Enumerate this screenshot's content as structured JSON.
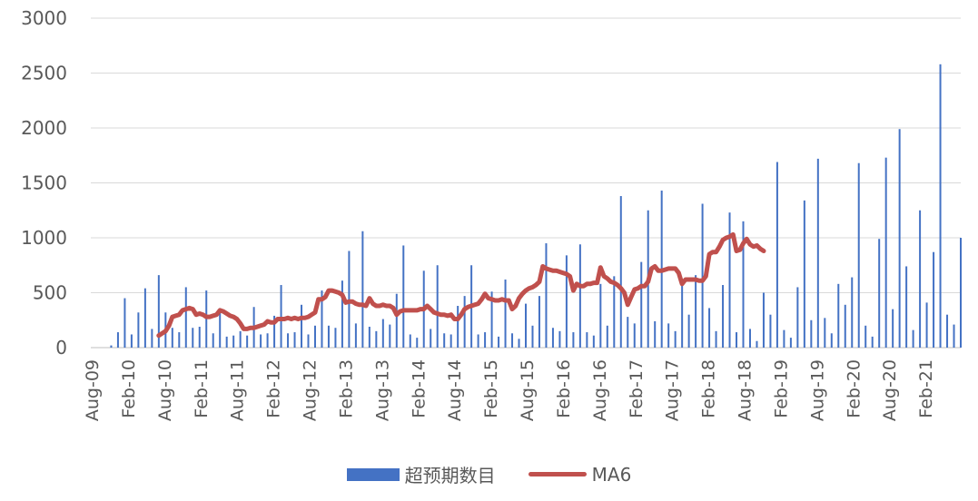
{
  "chart_data": {
    "type": "bar",
    "title": "",
    "xlabel": "",
    "ylabel": "",
    "ylim": [
      0,
      3000
    ],
    "yticks": [
      0,
      500,
      1000,
      1500,
      2000,
      2500,
      3000
    ],
    "grid": true,
    "legend_position": "bottom",
    "x_tick_labels": [
      "Aug-09",
      "Feb-10",
      "Aug-10",
      "Feb-11",
      "Aug-11",
      "Feb-12",
      "Aug-12",
      "Feb-13",
      "Aug-13",
      "Feb-14",
      "Aug-14",
      "Feb-15",
      "Aug-15",
      "Feb-16",
      "Aug-16",
      "Feb-17",
      "Aug-17",
      "Feb-18",
      "Aug-18",
      "Feb-19",
      "Aug-19",
      "Feb-20",
      "Aug-20",
      "Feb-21"
    ],
    "x_start": "2009-08",
    "x_end": "2021-08",
    "series": [
      {
        "name": "超预期数目",
        "type": "bar",
        "color": "#4472C4",
        "values": [
          0,
          0,
          0,
          0,
          0,
          0,
          20,
          0,
          140,
          0,
          450,
          0,
          120,
          0,
          320,
          0,
          540,
          0,
          170,
          0,
          660,
          0,
          320,
          0,
          180,
          0,
          140,
          0,
          550,
          0,
          180,
          0,
          190,
          0,
          520,
          0,
          130,
          0,
          360,
          0,
          100,
          0,
          110,
          0,
          150,
          0,
          110,
          0,
          370,
          0,
          120,
          0,
          130,
          0,
          290,
          0,
          570,
          0,
          130,
          0,
          140,
          0,
          390,
          0,
          120,
          0,
          200,
          0,
          520,
          0,
          200,
          0,
          180,
          0,
          610,
          0,
          880,
          0,
          220,
          0,
          1060,
          0,
          190,
          0,
          150,
          0,
          260,
          0,
          210,
          0,
          490,
          0,
          930,
          0,
          120,
          0,
          90,
          0,
          700,
          0,
          170,
          0,
          750,
          0,
          130,
          0,
          120,
          0,
          380,
          0,
          470,
          0,
          750,
          0,
          120,
          0,
          140,
          0,
          510,
          0,
          100,
          0,
          620,
          0,
          130,
          0,
          80,
          0,
          400,
          0,
          200,
          0,
          470,
          0,
          950,
          0,
          180,
          0,
          150,
          0,
          840,
          0,
          140,
          0,
          940,
          0,
          140,
          0,
          110,
          0,
          580,
          0,
          200,
          0,
          650,
          0,
          1380,
          0,
          280,
          0,
          220,
          0,
          780,
          0,
          1250,
          0,
          240,
          0,
          1430,
          0,
          220,
          0,
          150,
          0,
          590,
          0,
          300,
          0,
          660,
          0,
          1310,
          0,
          360,
          0,
          150,
          0,
          570,
          0,
          1230,
          0,
          140,
          0,
          1150,
          0,
          170,
          0,
          60,
          0,
          500,
          0,
          300,
          0,
          1690,
          0,
          160,
          0,
          90,
          0,
          550,
          0,
          1340,
          0,
          250,
          0,
          1720,
          0,
          270,
          0,
          130,
          0,
          580,
          0,
          390,
          0,
          640,
          0,
          1680,
          0,
          200,
          0,
          100,
          0,
          990,
          0,
          1730,
          0,
          350,
          0,
          1990,
          0,
          740,
          0,
          160,
          0,
          1250,
          0,
          410,
          0,
          870,
          0,
          2580,
          0,
          300,
          0,
          210,
          0,
          1000
        ]
      },
      {
        "name": "MA6",
        "type": "line",
        "color": "#C0504D",
        "values": [
          null,
          null,
          null,
          null,
          null,
          null,
          null,
          null,
          null,
          null,
          null,
          null,
          null,
          null,
          null,
          null,
          null,
          null,
          null,
          null,
          110,
          130,
          150,
          200,
          280,
          290,
          300,
          340,
          350,
          360,
          350,
          300,
          310,
          300,
          280,
          280,
          290,
          300,
          340,
          330,
          310,
          290,
          280,
          260,
          220,
          170,
          170,
          180,
          180,
          190,
          200,
          210,
          240,
          230,
          230,
          260,
          260,
          260,
          270,
          260,
          270,
          260,
          270,
          270,
          280,
          300,
          320,
          440,
          440,
          460,
          520,
          520,
          510,
          500,
          480,
          410,
          420,
          420,
          400,
          390,
          390,
          380,
          450,
          400,
          380,
          380,
          390,
          380,
          380,
          360,
          300,
          330,
          340,
          340,
          340,
          340,
          340,
          350,
          350,
          380,
          350,
          320,
          310,
          300,
          300,
          290,
          300,
          260,
          260,
          300,
          350,
          370,
          380,
          390,
          400,
          440,
          490,
          450,
          440,
          430,
          430,
          440,
          430,
          430,
          350,
          380,
          450,
          490,
          520,
          540,
          550,
          570,
          600,
          740,
          720,
          710,
          700,
          700,
          690,
          680,
          670,
          650,
          520,
          580,
          560,
          560,
          580,
          580,
          590,
          590,
          730,
          650,
          630,
          600,
          590,
          570,
          540,
          500,
          390,
          460,
          530,
          540,
          560,
          560,
          600,
          720,
          740,
          700,
          700,
          710,
          720,
          720,
          720,
          680,
          580,
          620,
          620,
          620,
          620,
          610,
          610,
          650,
          850,
          870,
          870,
          920,
          980,
          1000,
          1010,
          1030,
          880,
          890,
          950,
          990,
          940,
          920,
          930,
          900,
          880
        ]
      }
    ]
  },
  "legend": {
    "bar_label": "超预期数目",
    "line_label": "MA6"
  }
}
